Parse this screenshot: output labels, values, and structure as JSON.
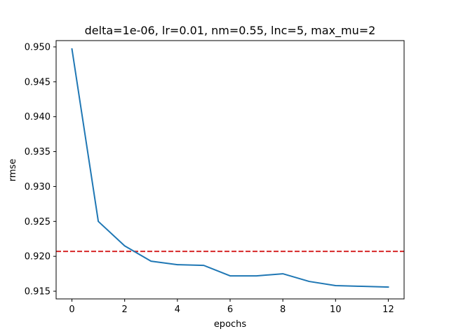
{
  "chart_data": {
    "type": "line",
    "title": "delta=1e-06, lr=0.01, nm=0.55, lnc=5, max_mu=2",
    "xlabel": "epochs",
    "ylabel": "rmse",
    "xlim": [
      -0.6,
      12.6
    ],
    "ylim": [
      0.9139,
      0.9509
    ],
    "xticks": [
      0,
      2,
      4,
      6,
      8,
      10,
      12
    ],
    "xtick_labels": [
      "0",
      "2",
      "4",
      "6",
      "8",
      "10",
      "12"
    ],
    "yticks": [
      0.915,
      0.92,
      0.925,
      0.93,
      0.935,
      0.94,
      0.945,
      0.95
    ],
    "ytick_labels": [
      "0.915",
      "0.920",
      "0.925",
      "0.930",
      "0.935",
      "0.940",
      "0.945",
      "0.950"
    ],
    "grid": false,
    "series": [
      {
        "color": "#1f77b4",
        "style": "solid",
        "x": [
          0,
          1,
          2,
          3,
          4,
          5,
          6,
          7,
          8,
          9,
          10,
          11,
          12
        ],
        "values": [
          0.9497,
          0.925,
          0.9215,
          0.9193,
          0.9188,
          0.9187,
          0.9172,
          0.9172,
          0.9175,
          0.9164,
          0.9158,
          0.9157,
          0.9156
        ]
      }
    ],
    "reference_lines": [
      {
        "orientation": "horizontal",
        "value": 0.9207,
        "color": "#d62728",
        "style": "dashed"
      }
    ]
  }
}
